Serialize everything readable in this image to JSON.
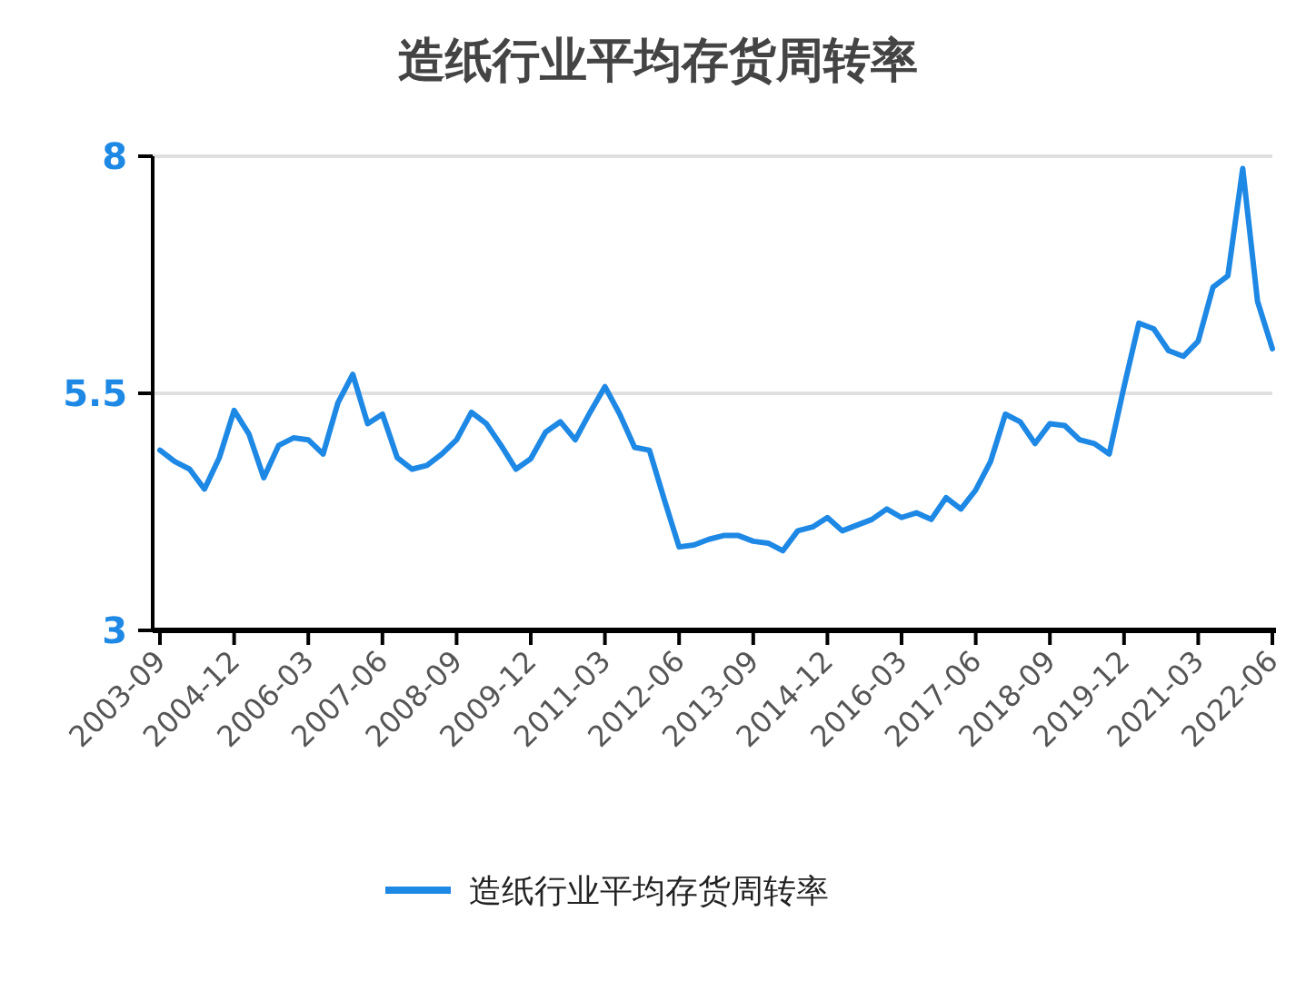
{
  "chart_data": {
    "type": "line",
    "title": "造纸行业平均存货周转率",
    "categories": [
      "2003-09",
      null,
      null,
      null,
      null,
      "2004-12",
      null,
      null,
      null,
      null,
      "2006-03",
      null,
      null,
      null,
      null,
      "2007-06",
      null,
      null,
      null,
      null,
      "2008-09",
      null,
      null,
      null,
      null,
      "2009-12",
      null,
      null,
      null,
      null,
      "2011-03",
      null,
      null,
      null,
      null,
      "2012-06",
      null,
      null,
      null,
      null,
      "2013-09",
      null,
      null,
      null,
      null,
      "2014-12",
      null,
      null,
      null,
      null,
      "2016-03",
      null,
      null,
      null,
      null,
      "2017-06",
      null,
      null,
      null,
      null,
      "2018-09",
      null,
      null,
      null,
      null,
      "2019-12",
      null,
      null,
      null,
      null,
      "2021-03",
      null,
      null,
      null,
      null,
      "2022-06"
    ],
    "series": [
      {
        "name": "造纸行业平均存货周转率",
        "color": "#1e88e5",
        "values": [
          4.9,
          4.78,
          4.7,
          4.49,
          4.82,
          5.32,
          5.07,
          4.61,
          4.95,
          5.03,
          5.01,
          4.86,
          5.4,
          5.7,
          5.18,
          5.28,
          4.82,
          4.7,
          4.74,
          4.86,
          5.01,
          5.3,
          5.18,
          4.95,
          4.7,
          4.81,
          5.09,
          5.2,
          5.01,
          5.3,
          5.57,
          5.28,
          4.93,
          4.9,
          4.38,
          3.88,
          3.9,
          3.96,
          4.0,
          4.0,
          3.94,
          3.92,
          3.84,
          4.05,
          4.09,
          4.19,
          4.05,
          4.11,
          4.17,
          4.28,
          4.19,
          4.24,
          4.17,
          4.4,
          4.28,
          4.48,
          4.78,
          5.28,
          5.2,
          4.97,
          5.18,
          5.16,
          5.01,
          4.97,
          4.86,
          5.57,
          6.24,
          6.18,
          5.95,
          5.89,
          6.05,
          6.62,
          6.74,
          7.87,
          6.47,
          5.97
        ]
      }
    ],
    "ylim": [
      3,
      8
    ],
    "yticks": [
      3,
      5.5,
      8
    ],
    "grid": "y",
    "legend": "bottom",
    "line_style": "solid",
    "marker": "none"
  }
}
